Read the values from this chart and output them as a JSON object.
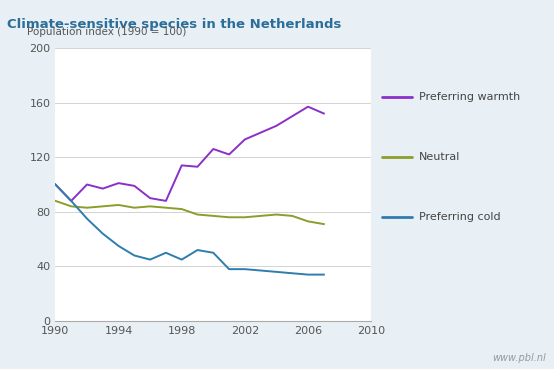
{
  "title": "Climate-sensitive species in the Netherlands",
  "ylabel": "Population index (1990 = 100)",
  "fig_bg_color": "#e8f0f5",
  "title_bg_color": "#cfe0ec",
  "plot_bg_color": "#ffffff",
  "xlim": [
    1990,
    2010
  ],
  "ylim": [
    0,
    200
  ],
  "yticks": [
    0,
    40,
    80,
    120,
    160,
    200
  ],
  "xticks": [
    1990,
    1994,
    1998,
    2002,
    2006,
    2010
  ],
  "watermark": "www.pbl.nl",
  "series": {
    "warmth": {
      "label": "Preferring warmth",
      "color": "#8B2FC9",
      "x": [
        1990,
        1991,
        1992,
        1993,
        1994,
        1995,
        1996,
        1997,
        1998,
        1999,
        2000,
        2001,
        2002,
        2003,
        2004,
        2005,
        2006,
        2007
      ],
      "y": [
        100,
        88,
        100,
        97,
        101,
        99,
        90,
        88,
        114,
        113,
        126,
        122,
        133,
        138,
        143,
        150,
        157,
        152
      ]
    },
    "neutral": {
      "label": "Neutral",
      "color": "#8B9E2B",
      "x": [
        1990,
        1991,
        1992,
        1993,
        1994,
        1995,
        1996,
        1997,
        1998,
        1999,
        2000,
        2001,
        2002,
        2003,
        2004,
        2005,
        2006,
        2007
      ],
      "y": [
        88,
        84,
        83,
        84,
        85,
        83,
        84,
        83,
        82,
        78,
        77,
        76,
        76,
        77,
        78,
        77,
        73,
        71
      ]
    },
    "cold": {
      "label": "Preferring cold",
      "color": "#2E7DAE",
      "x": [
        1990,
        1991,
        1992,
        1993,
        1994,
        1995,
        1996,
        1997,
        1998,
        1999,
        2000,
        2001,
        2002,
        2003,
        2004,
        2005,
        2006,
        2007
      ],
      "y": [
        100,
        88,
        75,
        64,
        55,
        48,
        45,
        50,
        45,
        52,
        50,
        38,
        38,
        37,
        36,
        35,
        34,
        34
      ]
    }
  }
}
